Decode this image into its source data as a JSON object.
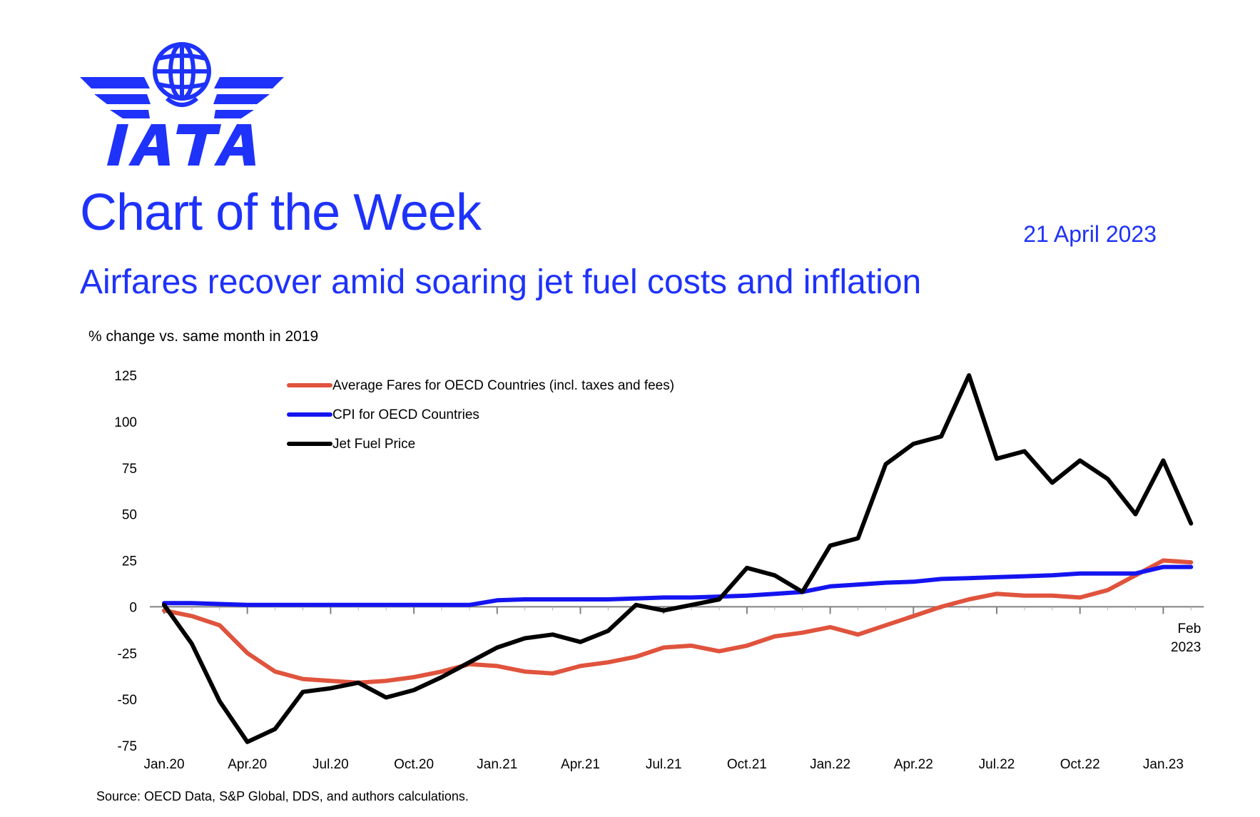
{
  "brand": {
    "logo_text": "IATA",
    "color": "#1e32fa"
  },
  "header": {
    "title": "Chart of the Week",
    "date": "21 April 2023"
  },
  "subtitle": "Airfares recover amid soaring jet fuel costs and inflation",
  "source": "Source: OECD Data, S&P Global, DDS, and authors calculations.",
  "chart_data": {
    "type": "line",
    "ylabel": "% change vs. same month in 2019",
    "ylim": [
      -75,
      125
    ],
    "yticks": [
      125,
      100,
      75,
      50,
      25,
      0,
      -25,
      -50,
      -75
    ],
    "x_tick_labels": [
      "Jan.20",
      "Apr.20",
      "Jul.20",
      "Oct.20",
      "Jan.21",
      "Apr.21",
      "Jul.21",
      "Oct.21",
      "Jan.22",
      "Apr.22",
      "Jul.22",
      "Oct.22",
      "Jan.23"
    ],
    "x_end_annotation": [
      "Feb",
      "2023"
    ],
    "grid": false,
    "legend_position": "top-left",
    "categories": [
      "Jan.20",
      "Feb.20",
      "Mar.20",
      "Apr.20",
      "May.20",
      "Jun.20",
      "Jul.20",
      "Aug.20",
      "Sep.20",
      "Oct.20",
      "Nov.20",
      "Dec.20",
      "Jan.21",
      "Feb.21",
      "Mar.21",
      "Apr.21",
      "May.21",
      "Jun.21",
      "Jul.21",
      "Aug.21",
      "Sep.21",
      "Oct.21",
      "Nov.21",
      "Dec.21",
      "Jan.22",
      "Feb.22",
      "Mar.22",
      "Apr.22",
      "May.22",
      "Jun.22",
      "Jul.22",
      "Aug.22",
      "Sep.22",
      "Oct.22",
      "Nov.22",
      "Dec.22",
      "Jan.23",
      "Feb.23"
    ],
    "series": [
      {
        "name": "Average Fares for OECD Countries (incl. taxes and fees)",
        "color": "#e0533d",
        "values": [
          -2,
          -5,
          -10,
          -25,
          -35,
          -39,
          -40,
          -41,
          -40,
          -38,
          -35,
          -31,
          -32,
          -35,
          -36,
          -32,
          -30,
          -27,
          -22,
          -21,
          -24,
          -21,
          -16,
          -14,
          -11,
          -15,
          -10,
          -5,
          0,
          4,
          7,
          6,
          6,
          5,
          9,
          17,
          25,
          24
        ]
      },
      {
        "name": "CPI for OECD Countries",
        "color": "#1414f0",
        "values": [
          2,
          2,
          1.5,
          1,
          1,
          1,
          1,
          1,
          1,
          1,
          1,
          1,
          3.5,
          4,
          4,
          4,
          4,
          4.5,
          5,
          5,
          5.5,
          6,
          7,
          8,
          11,
          12,
          13,
          13.5,
          15,
          15.5,
          16,
          16.5,
          17,
          18,
          18,
          18,
          21.5,
          21.5
        ]
      },
      {
        "name": "Jet Fuel Price",
        "color": "#000000",
        "values": [
          1,
          -20,
          -51,
          -73,
          -66,
          -46,
          -44,
          -41,
          -49,
          -45,
          -38,
          -30,
          -22,
          -17,
          -15,
          -19,
          -13,
          1,
          -2,
          1,
          4,
          21,
          17,
          8,
          33,
          37,
          77,
          88,
          92,
          125,
          80,
          84,
          67,
          79,
          69,
          50,
          79,
          45
        ]
      }
    ]
  }
}
